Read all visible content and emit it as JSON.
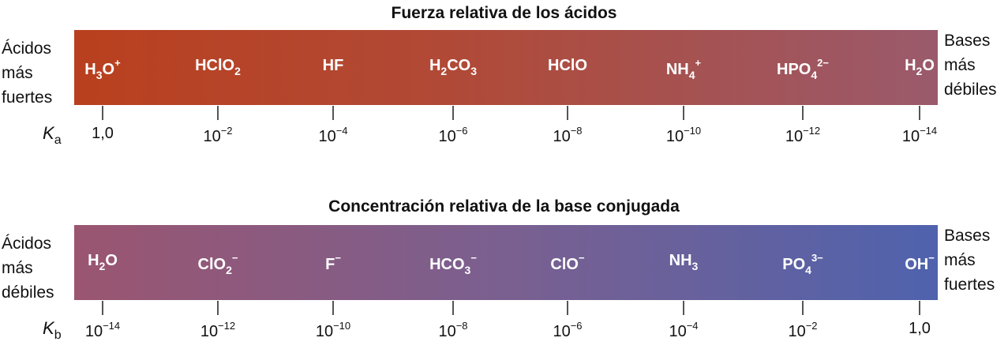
{
  "top": {
    "title": "Fuerza relativa de los ácidos",
    "left_label": [
      "Ácidos",
      "más",
      "fuertes"
    ],
    "right_label": [
      "Bases",
      "más",
      "débiles"
    ],
    "k_symbol": "K",
    "k_sub": "a",
    "colors": {
      "start": "#b9401e",
      "end": "#9a5a6c"
    },
    "species": [
      [
        {
          "t": "H"
        },
        {
          "t": "3",
          "s": "sub"
        },
        {
          "t": "O"
        },
        {
          "t": "+",
          "s": "sup"
        }
      ],
      [
        {
          "t": "HClO"
        },
        {
          "t": "2",
          "s": "sub"
        }
      ],
      [
        {
          "t": "HF"
        }
      ],
      [
        {
          "t": "H"
        },
        {
          "t": "2",
          "s": "sub"
        },
        {
          "t": "CO"
        },
        {
          "t": "3",
          "s": "sub"
        }
      ],
      [
        {
          "t": "HClO"
        }
      ],
      [
        {
          "t": "NH"
        },
        {
          "t": "4",
          "s": "sub"
        },
        {
          "t": "+",
          "s": "sup"
        }
      ],
      [
        {
          "t": "HPO"
        },
        {
          "t": "4",
          "s": "sub"
        },
        {
          "t": "2−",
          "s": "sup"
        }
      ],
      [
        {
          "t": "H"
        },
        {
          "t": "2",
          "s": "sub"
        },
        {
          "t": "O"
        }
      ]
    ],
    "ticks": [
      {
        "b": "1,0",
        "e": ""
      },
      {
        "b": "10",
        "e": "−2"
      },
      {
        "b": "10",
        "e": "−4"
      },
      {
        "b": "10",
        "e": "−6"
      },
      {
        "b": "10",
        "e": "−8"
      },
      {
        "b": "10",
        "e": "−10"
      },
      {
        "b": "10",
        "e": "−12"
      },
      {
        "b": "10",
        "e": "−14"
      }
    ]
  },
  "bottom": {
    "title": "Concentración relativa de la base conjugada",
    "left_label": [
      "Ácidos",
      "más",
      "débiles"
    ],
    "right_label": [
      "Bases",
      "más",
      "fuertes"
    ],
    "k_symbol": "K",
    "k_sub": "b",
    "colors": {
      "start": "#9a5570",
      "end": "#4f62ad"
    },
    "species": [
      [
        {
          "t": "H"
        },
        {
          "t": "2",
          "s": "sub"
        },
        {
          "t": "O"
        }
      ],
      [
        {
          "t": "ClO"
        },
        {
          "t": "2",
          "s": "sub"
        },
        {
          "t": "−",
          "s": "sup"
        }
      ],
      [
        {
          "t": "F"
        },
        {
          "t": "−",
          "s": "sup"
        }
      ],
      [
        {
          "t": "HCO"
        },
        {
          "t": "3",
          "s": "sub"
        },
        {
          "t": "−",
          "s": "sup"
        }
      ],
      [
        {
          "t": "ClO"
        },
        {
          "t": "−",
          "s": "sup"
        }
      ],
      [
        {
          "t": "NH"
        },
        {
          "t": "3",
          "s": "sub"
        }
      ],
      [
        {
          "t": "PO"
        },
        {
          "t": "4",
          "s": "sub"
        },
        {
          "t": "3−",
          "s": "sup"
        }
      ],
      [
        {
          "t": "OH"
        },
        {
          "t": "−",
          "s": "sup"
        }
      ]
    ],
    "ticks": [
      {
        "b": "10",
        "e": "−14"
      },
      {
        "b": "10",
        "e": "−12"
      },
      {
        "b": "10",
        "e": "−10"
      },
      {
        "b": "10",
        "e": "−8"
      },
      {
        "b": "10",
        "e": "−6"
      },
      {
        "b": "10",
        "e": "−4"
      },
      {
        "b": "10",
        "e": "−2"
      },
      {
        "b": "1,0",
        "e": ""
      }
    ]
  }
}
